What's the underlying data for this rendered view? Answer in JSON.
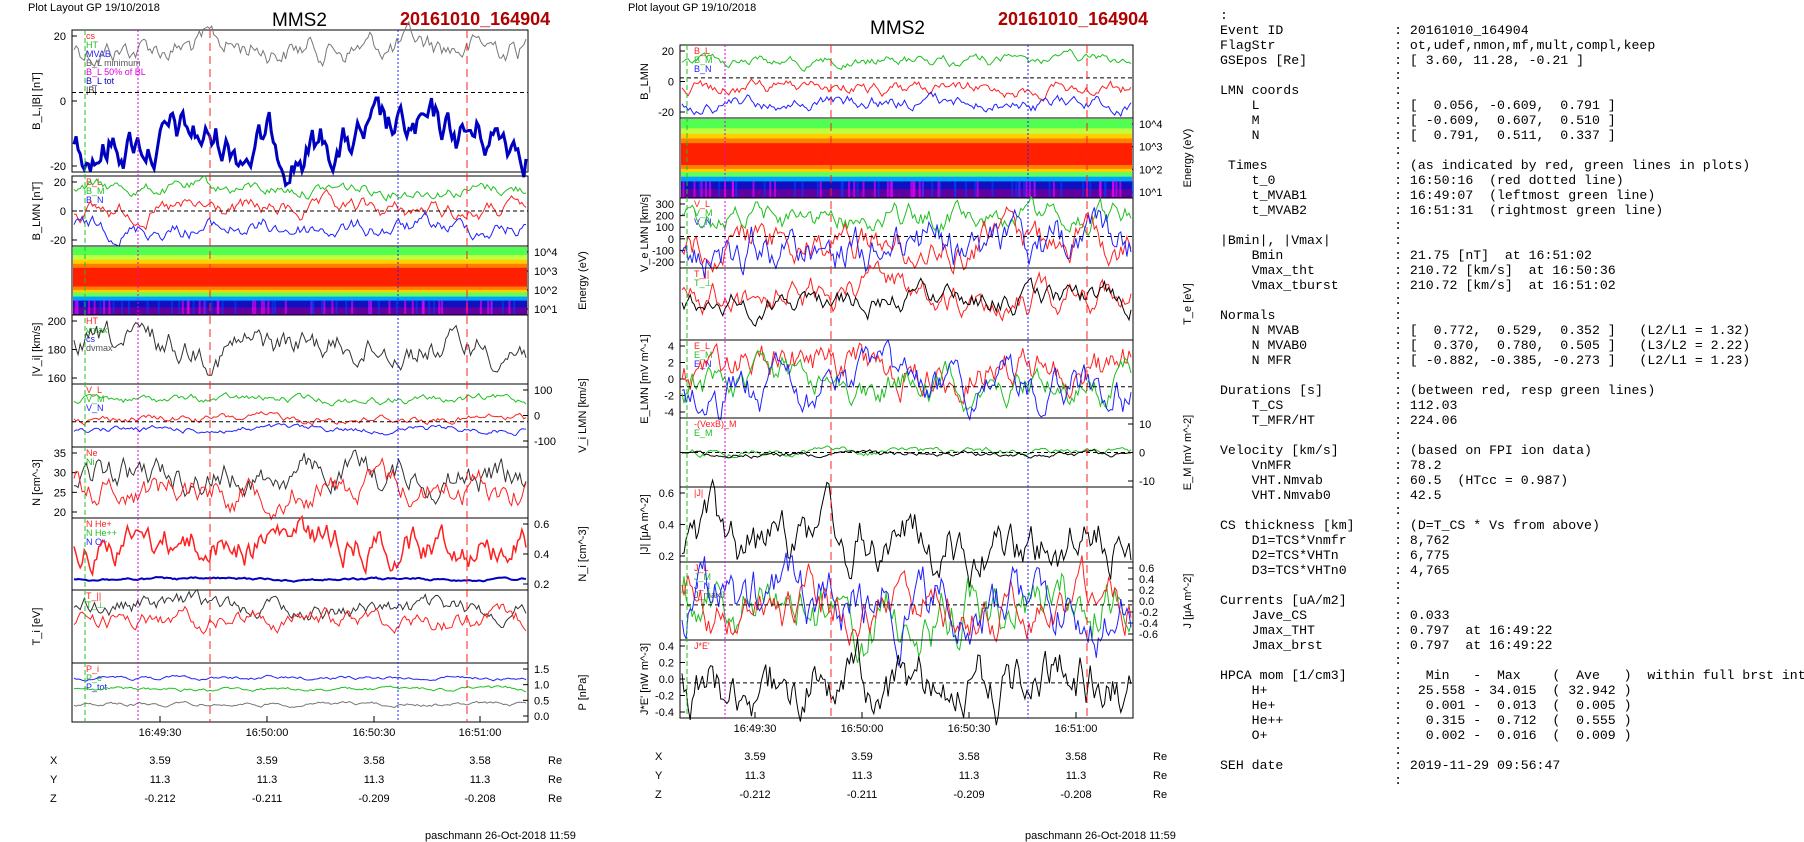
{
  "left_plot": {
    "header": "Plot Layout GP 19/10/2018",
    "title": "MMS2",
    "event": "20161010_164904",
    "footer": "paschmann 26-Oct-2018 11:59",
    "time_ticks": [
      "16:49:30",
      "16:50:00",
      "16:50:30",
      "16:51:00"
    ],
    "coords": {
      "row_labels": [
        "X",
        "Y",
        "Z"
      ],
      "unit": "Re",
      "X": [
        "3.59",
        "3.59",
        "3.58",
        "3.58"
      ],
      "Y": [
        "11.3",
        "11.3",
        "11.3",
        "11.3"
      ],
      "Z": [
        "-0.212",
        "-0.211",
        "-0.209",
        "-0.208"
      ]
    },
    "panels": [
      {
        "ylabel": "B_L,|B| [nT]",
        "ticks": [
          "20",
          "0",
          "-20"
        ],
        "legend": [
          "cs",
          "HT",
          "MVAB",
          "B_L minimum",
          "B_L 50% of BL",
          "B_L tot",
          "|B|"
        ]
      },
      {
        "ylabel": "B_LMN [nT]",
        "ticks": [
          "20",
          "0",
          "-20"
        ],
        "legend": [
          "B_L",
          "B_M",
          "B_N"
        ]
      },
      {
        "ylabel": "Energy (eV)",
        "ticks": [
          "10^4",
          "10^3",
          "10^2",
          "10^1"
        ],
        "legend": []
      },
      {
        "ylabel": "|V_i| [km/s]",
        "ticks": [
          "200",
          "180",
          "160"
        ],
        "legend": [
          "HT",
          "vmax",
          "cs",
          "dvmax"
        ]
      },
      {
        "ylabel": "V_i LMN [km/s]",
        "ticks": [
          "100",
          "0",
          "-100"
        ],
        "legend": [
          "V_L",
          "V_M",
          "V_N"
        ]
      },
      {
        "ylabel": "N [cm^-3]",
        "ticks": [
          "35",
          "30",
          "25",
          "20"
        ],
        "legend": [
          "Ne",
          "Ni"
        ]
      },
      {
        "ylabel": "N_i [cm^-3]",
        "ticks": [
          "0.6",
          "0.4",
          "0.2"
        ],
        "legend": [
          "N He+",
          "N He++",
          "N O+"
        ]
      },
      {
        "ylabel": "T_i [eV]",
        "ticks": [],
        "legend": [
          "T_||",
          "T_⊥"
        ]
      },
      {
        "ylabel": "P [nPa]",
        "ticks": [
          "1.5",
          "1.0",
          "0.5",
          "0.0"
        ],
        "legend": [
          "P_i",
          "P_e",
          "P_tot"
        ]
      }
    ]
  },
  "middle_plot": {
    "header": "Plot layout GP 19/10/2018",
    "title": "MMS2",
    "event": "20161010_164904",
    "footer": "paschmann 26-Oct-2018 11:59",
    "time_ticks": [
      "16:49:30",
      "16:50:00",
      "16:50:30",
      "16:51:00"
    ],
    "coords": {
      "row_labels": [
        "X",
        "Y",
        "Z"
      ],
      "unit": "Re",
      "X": [
        "3.59",
        "3.59",
        "3.58",
        "3.58"
      ],
      "Y": [
        "11.3",
        "11.3",
        "11.3",
        "11.3"
      ],
      "Z": [
        "-0.212",
        "-0.211",
        "-0.209",
        "-0.208"
      ]
    },
    "panels": [
      {
        "ylabel": "B_LMN",
        "ticks": [
          "20",
          "0",
          "-20"
        ],
        "legend": [
          "B_L",
          "B_M",
          "B_N"
        ]
      },
      {
        "ylabel": "Energy (eV)",
        "ticks": [
          "10^4",
          "10^3",
          "10^2",
          "10^1"
        ],
        "legend": []
      },
      {
        "ylabel": "V_e LMN [km/s]",
        "ticks": [
          "300",
          "200",
          "100",
          "0",
          "-100",
          "-200"
        ],
        "legend": [
          "V_L",
          "V_M",
          "V_N"
        ]
      },
      {
        "ylabel": "T_e [eV]",
        "ticks": [],
        "legend": [
          "T_||",
          "T_⊥"
        ]
      },
      {
        "ylabel": "E_LMN [mV m^-1]",
        "ticks": [
          "4",
          "2",
          "0",
          "-2",
          "-4"
        ],
        "legend": [
          "E_L",
          "E_M",
          "E_N"
        ]
      },
      {
        "ylabel": "E_M [mV m^-2]",
        "ticks": [
          "10",
          "0",
          "-10"
        ],
        "legend": [
          "-(VexB)_M",
          "E_M"
        ]
      },
      {
        "ylabel": "|J| [μA m^-2]",
        "ticks": [
          "0.6",
          "0.4",
          "0.2"
        ],
        "legend": [
          "|J|"
        ]
      },
      {
        "ylabel": "J [μA m^-2]",
        "ticks": [
          "0.6",
          "0.4",
          "0.2",
          "0.0",
          "-0.2",
          "-0.4",
          "-0.6"
        ],
        "legend": [
          "J_L",
          "J_M",
          "J_N",
          "J_maxJ"
        ]
      },
      {
        "ylabel": "J*E' [nW m^-3]",
        "ticks": [
          "0.4",
          "0.2",
          "0.0",
          "-0.2",
          "-0.4"
        ],
        "legend": [
          "J*E'"
        ]
      }
    ]
  },
  "info_lines": [
    ":",
    "Event ID              : 20161010_164904",
    "FlagStr               : ot,udef,nmon,mf,mult,compl,keep",
    "GSEpos [Re]           : [ 3.60, 11.28, -0.21 ]",
    "                      :",
    "LMN coords            :",
    "    L                 : [  0.056, -0.609,  0.791 ]",
    "    M                 : [ -0.609,  0.607,  0.510 ]",
    "    N                 : [  0.791,  0.511,  0.337 ]",
    "                      :",
    " Times                : (as indicated by red, green lines in plots)",
    "    t_0               : 16:50:16  (red dotted line)",
    "    t_MVAB1           : 16:49:07  (leftmost green line)",
    "    t_MVAB2           : 16:51:31  (rightmost green line)",
    "                      :",
    "|Bmin|, |Vmax|        :",
    "    Bmin              : 21.75 [nT]  at 16:51:02",
    "    Vmax_tht          : 210.72 [km/s]  at 16:50:36",
    "    Vmax_tburst       : 210.72 [km/s]  at 16:51:02",
    "                      :",
    "Normals               :",
    "    N MVAB            : [  0.772,  0.529,  0.352 ]   (L2/L1 = 1.32)",
    "    N MVAB0           : [  0.370,  0.780,  0.505 ]   (L3/L2 = 2.22)",
    "    N MFR             : [ -0.882, -0.385, -0.273 ]   (L2/L1 = 1.23)",
    "                      :",
    "Durations [s]         : (between red, resp green lines)",
    "    T_CS              : 112.03",
    "    T_MFR/HT          : 224.06",
    "                      :",
    "Velocity [km/s]       : (based on FPI ion data)",
    "    VnMFR             : 78.2",
    "    VHT.Nmvab         : 60.5  (HTcc = 0.987)",
    "    VHT.Nmvab0        : 42.5",
    "                      :",
    "CS thickness [km]     : (D=T_CS * Vs from above)",
    "    D1=TCS*Vnmfr      : 8,762",
    "    D2=TCS*VHTn       : 6,775",
    "    D3=TCS*VHTn0      : 4,765",
    "                      :",
    "Currents [uA/m2]      :",
    "    Jave_CS           : 0.033",
    "    Jmax_THT          : 0.797  at 16:49:22",
    "    Jmax_brst         : 0.797  at 16:49:22",
    "                      :",
    "HPCA mom [1/cm3]      :   Min   -  Max    (  Ave   )  within full brst int",
    "    H+                :  25.558 - 34.015  ( 32.942 )",
    "    He+               :   0.001 -  0.013  (  0.005 )",
    "    He++              :   0.315 -  0.712  (  0.555 )",
    "    O+                :   0.002 -  0.016  (  0.009 )",
    "                      :",
    "SEH date              : 2019-11-29 09:56:47",
    "                      :"
  ],
  "colors": {
    "event": "#b00000",
    "red": "#ff2020",
    "green": "#20c020",
    "blue": "#2020ff",
    "magenta": "#e000e0",
    "darkblue": "#0000c0"
  }
}
